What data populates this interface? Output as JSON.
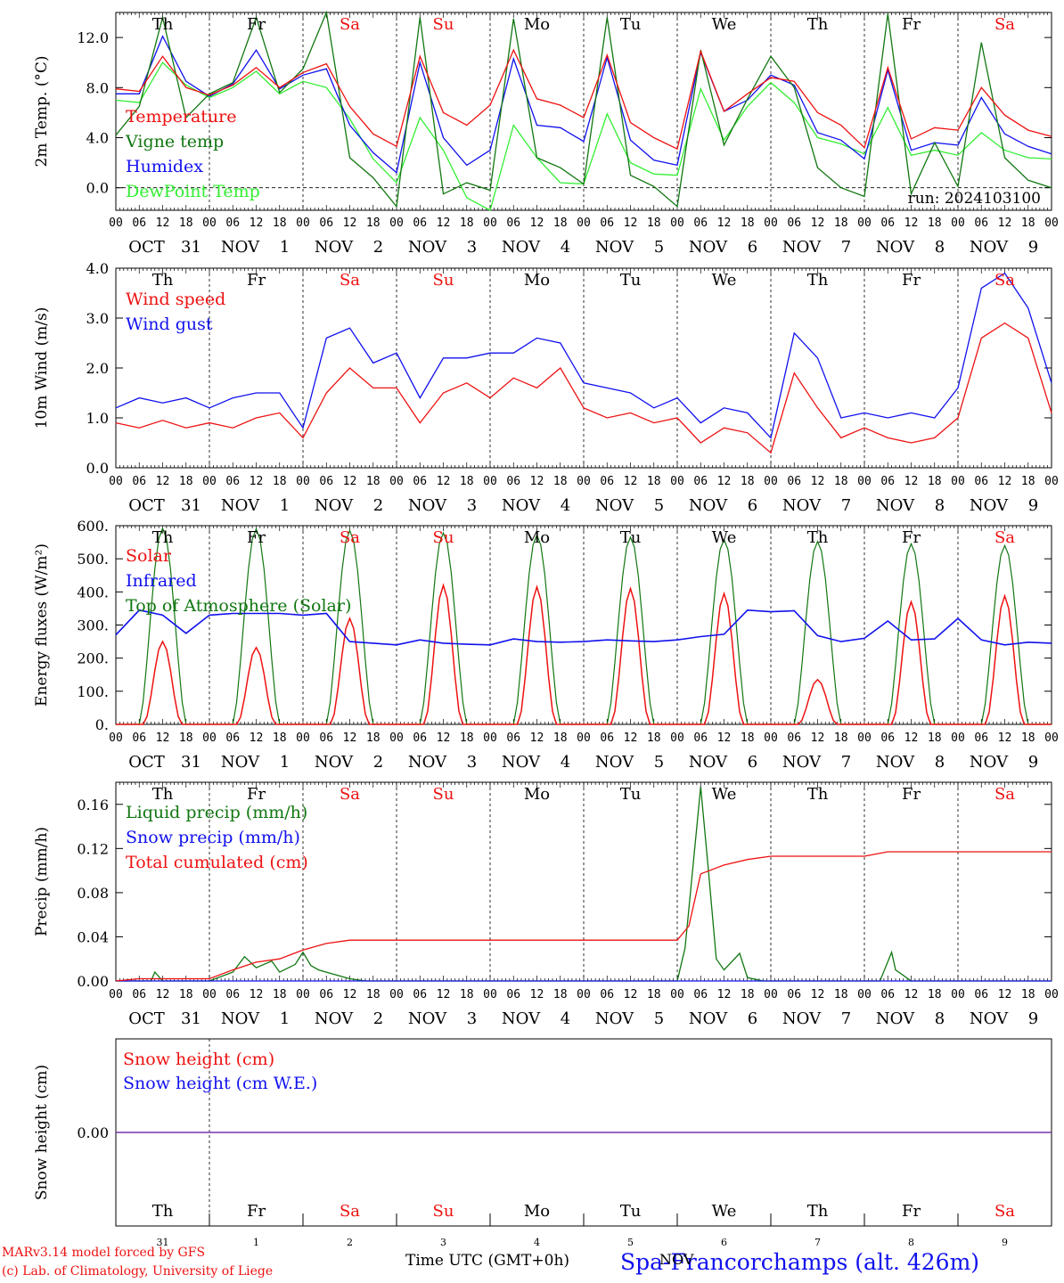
{
  "colors": {
    "red": "#ee1111",
    "green": "#117711",
    "blue": "#1111ee",
    "lightgreen": "#33ee33",
    "purple": "#7733aa",
    "black": "#000000"
  },
  "days": {
    "names": [
      "Th",
      "Fr",
      "Sa",
      "Su",
      "Mo",
      "Tu",
      "We",
      "Th",
      "Fr",
      "Sa"
    ],
    "weekend": [
      false,
      false,
      true,
      true,
      false,
      false,
      false,
      false,
      false,
      true
    ],
    "date_month": [
      "OCT",
      "NOV",
      "NOV",
      "NOV",
      "NOV",
      "NOV",
      "NOV",
      "NOV",
      "NOV",
      "NOV"
    ],
    "date_day": [
      "31",
      "1",
      "2",
      "3",
      "4",
      "5",
      "6",
      "7",
      "8",
      "9"
    ],
    "hour_ticks": [
      "00",
      "06",
      "12",
      "18"
    ],
    "last_tick": "00"
  },
  "chart_data": [
    {
      "type": "line",
      "ylabel": "2m Temp. (°C)",
      "ylim": [
        -1.8,
        14.0
      ],
      "yticks": [
        "0.0",
        "4.0",
        "8.0",
        "12.0"
      ],
      "ytick_values": [
        0,
        4,
        8,
        12
      ],
      "x_unit": "hours since 2024-10-31 00 UTC",
      "annotation": "run: 2024103100",
      "series": [
        {
          "name": "Temperature",
          "color": "red",
          "x": [
            0,
            6,
            12,
            18,
            24,
            30,
            36,
            42,
            48,
            54,
            60,
            66,
            72,
            78,
            84,
            90,
            96,
            102,
            108,
            114,
            120,
            126,
            132,
            138,
            144,
            150,
            156,
            162,
            168,
            174,
            180,
            186,
            192,
            198,
            204,
            210,
            216,
            222,
            228,
            234,
            240
          ],
          "y": [
            7.9,
            7.7,
            10.5,
            8.0,
            7.4,
            8.2,
            9.6,
            8.0,
            9.2,
            9.9,
            6.5,
            4.3,
            3.3,
            10.5,
            6.0,
            5.0,
            6.6,
            11.0,
            7.1,
            6.6,
            5.6,
            10.6,
            5.2,
            4.0,
            3.1,
            10.9,
            6.1,
            7.5,
            8.8,
            8.5,
            6.0,
            5.0,
            3.2,
            9.6,
            3.9,
            4.8,
            4.6,
            8.0,
            5.8,
            4.6,
            4.1
          ]
        },
        {
          "name": "Vigne temp",
          "color": "green",
          "x": [
            0,
            6,
            12,
            18,
            24,
            30,
            36,
            42,
            48,
            54,
            60,
            66,
            72,
            78,
            84,
            90,
            96,
            102,
            108,
            114,
            120,
            126,
            132,
            138,
            144,
            150,
            156,
            162,
            168,
            174,
            180,
            186,
            192,
            198,
            204,
            210,
            216,
            222,
            228,
            234,
            240
          ],
          "y": [
            4.2,
            6.5,
            13.6,
            5.6,
            7.5,
            8.4,
            13.6,
            7.6,
            9.5,
            14.0,
            2.4,
            0.8,
            -1.5,
            13.6,
            -0.5,
            0.4,
            -0.2,
            13.5,
            2.4,
            1.6,
            0.3,
            13.6,
            1.0,
            0.1,
            -1.5,
            11.0,
            3.4,
            7.1,
            10.5,
            8.0,
            1.6,
            0.0,
            -0.7,
            13.9,
            -0.5,
            3.6,
            0.1,
            11.6,
            2.4,
            0.6,
            0.0
          ]
        },
        {
          "name": "Humidex",
          "color": "blue",
          "x": [
            0,
            6,
            12,
            18,
            24,
            30,
            36,
            42,
            48,
            54,
            60,
            66,
            72,
            78,
            84,
            90,
            96,
            102,
            108,
            114,
            120,
            126,
            132,
            138,
            144,
            150,
            156,
            162,
            168,
            174,
            180,
            186,
            192,
            198,
            204,
            210,
            216,
            222,
            228,
            234,
            240
          ],
          "y": [
            7.5,
            7.5,
            12.1,
            8.5,
            7.3,
            8.3,
            11.0,
            7.9,
            9.0,
            9.5,
            5.0,
            2.8,
            1.2,
            10.0,
            4.0,
            1.8,
            3.0,
            10.3,
            5.0,
            4.8,
            3.7,
            10.4,
            3.8,
            2.2,
            1.8,
            10.8,
            6.1,
            7.0,
            9.0,
            8.2,
            4.4,
            3.8,
            2.3,
            9.4,
            3.0,
            3.6,
            3.4,
            7.2,
            4.3,
            3.3,
            2.7
          ]
        },
        {
          "name": "DewPoint Temp",
          "color": "lightgreen",
          "x": [
            0,
            6,
            12,
            18,
            24,
            30,
            36,
            42,
            48,
            54,
            60,
            66,
            72,
            78,
            84,
            90,
            96,
            102,
            108,
            114,
            120,
            126,
            132,
            138,
            144,
            150,
            156,
            162,
            168,
            174,
            180,
            186,
            192,
            198,
            204,
            210,
            216,
            222,
            228,
            234,
            240
          ],
          "y": [
            7.0,
            6.8,
            10.0,
            8.2,
            7.2,
            8.0,
            9.3,
            7.5,
            8.5,
            8.0,
            5.5,
            2.3,
            0.4,
            5.6,
            3.0,
            -0.8,
            -1.8,
            5.0,
            2.4,
            0.4,
            0.3,
            5.9,
            2.0,
            1.1,
            1.0,
            7.9,
            3.8,
            6.5,
            8.4,
            6.8,
            4.0,
            3.5,
            2.7,
            6.4,
            2.6,
            3.0,
            2.6,
            4.4,
            3.0,
            2.4,
            2.3
          ]
        }
      ]
    },
    {
      "type": "line",
      "ylabel": "10m Wind (m/s)",
      "ylim": [
        0.0,
        4.0
      ],
      "yticks": [
        "0.0",
        "1.0",
        "2.0",
        "3.0",
        "4.0"
      ],
      "ytick_values": [
        0,
        1,
        2,
        3,
        4
      ],
      "x_unit": "hours since 2024-10-31 00 UTC",
      "series": [
        {
          "name": "Wind speed",
          "color": "red",
          "x": [
            0,
            6,
            12,
            18,
            24,
            30,
            36,
            42,
            48,
            54,
            60,
            66,
            72,
            78,
            84,
            90,
            96,
            102,
            108,
            114,
            120,
            126,
            132,
            138,
            144,
            150,
            156,
            162,
            168,
            174,
            180,
            186,
            192,
            198,
            204,
            210,
            216,
            222,
            228,
            234,
            240
          ],
          "y": [
            0.9,
            0.8,
            0.95,
            0.8,
            0.9,
            0.8,
            1.0,
            1.1,
            0.6,
            1.5,
            2.0,
            1.6,
            1.6,
            0.9,
            1.5,
            1.7,
            1.4,
            1.8,
            1.6,
            2.0,
            1.2,
            1.0,
            1.1,
            0.9,
            1.0,
            0.5,
            0.8,
            0.7,
            0.3,
            1.9,
            1.2,
            0.6,
            0.8,
            0.6,
            0.5,
            0.6,
            1.0,
            2.6,
            2.9,
            2.6,
            1.1
          ]
        },
        {
          "name": "Wind gust",
          "color": "blue",
          "x": [
            0,
            6,
            12,
            18,
            24,
            30,
            36,
            42,
            48,
            54,
            60,
            66,
            72,
            78,
            84,
            90,
            96,
            102,
            108,
            114,
            120,
            126,
            132,
            138,
            144,
            150,
            156,
            162,
            168,
            174,
            180,
            186,
            192,
            198,
            204,
            210,
            216,
            222,
            228,
            234,
            240
          ],
          "y": [
            1.2,
            1.4,
            1.3,
            1.4,
            1.2,
            1.4,
            1.5,
            1.5,
            0.8,
            2.6,
            2.8,
            2.1,
            2.3,
            1.4,
            2.2,
            2.2,
            2.3,
            2.3,
            2.6,
            2.5,
            1.7,
            1.6,
            1.5,
            1.2,
            1.4,
            0.9,
            1.2,
            1.1,
            0.6,
            2.7,
            2.2,
            1.0,
            1.1,
            1.0,
            1.1,
            1.0,
            1.6,
            3.6,
            3.9,
            3.2,
            1.7
          ]
        }
      ]
    },
    {
      "type": "line",
      "ylabel": "Energy fluxes (W/m²)",
      "ylim": [
        0,
        600
      ],
      "yticks": [
        "0.",
        "100.",
        "200.",
        "300.",
        "400.",
        "500.",
        "600."
      ],
      "ytick_values": [
        0,
        100,
        200,
        300,
        400,
        500,
        600
      ],
      "x_unit": "hours since 2024-10-31 00 UTC",
      "solar_peaks_day_index": [
        0,
        1,
        2,
        3,
        4,
        5,
        6,
        7,
        8,
        9
      ],
      "solar_peaks": [
        250,
        232,
        320,
        420,
        415,
        410,
        395,
        135,
        370,
        388
      ],
      "toa_peaks": [
        592,
        590,
        585,
        578,
        572,
        565,
        558,
        552,
        545,
        540
      ],
      "series": [
        {
          "name": "Solar",
          "color": "red"
        },
        {
          "name": "Infrared",
          "color": "blue",
          "x": [
            0,
            6,
            12,
            18,
            24,
            30,
            36,
            42,
            48,
            54,
            60,
            66,
            72,
            78,
            84,
            90,
            96,
            102,
            108,
            114,
            120,
            126,
            132,
            138,
            144,
            150,
            156,
            162,
            168,
            174,
            180,
            186,
            192,
            198,
            204,
            210,
            216,
            222,
            228,
            234,
            240
          ],
          "y": [
            270,
            345,
            330,
            275,
            330,
            335,
            335,
            335,
            330,
            335,
            250,
            245,
            240,
            255,
            245,
            242,
            240,
            258,
            250,
            248,
            250,
            255,
            252,
            250,
            255,
            265,
            272,
            345,
            340,
            343,
            268,
            250,
            260,
            312,
            255,
            258,
            320,
            255,
            240,
            248,
            245
          ]
        },
        {
          "name": "Top of Atmosphere (Solar)",
          "color": "green"
        }
      ]
    },
    {
      "type": "line",
      "ylabel": "Precip (mm/h)",
      "ylim": [
        0.0,
        0.18
      ],
      "yticks": [
        "0.00",
        "0.04",
        "0.08",
        "0.12",
        "0.16"
      ],
      "ytick_values": [
        0,
        0.04,
        0.08,
        0.12,
        0.16
      ],
      "x_unit": "hours since 2024-10-31 00 UTC",
      "series": [
        {
          "name": "Liquid precip (mm/h)",
          "color": "green",
          "x": [
            0,
            9,
            10,
            12,
            18,
            24,
            30,
            33,
            36,
            40,
            42,
            46,
            48,
            50,
            52,
            56,
            60,
            64,
            144,
            146,
            150,
            152,
            154,
            156,
            160,
            162,
            166,
            170,
            174,
            180,
            196,
            199,
            200,
            204,
            240
          ],
          "y": [
            0,
            0,
            0.008,
            0,
            0,
            0,
            0.008,
            0.022,
            0.012,
            0.018,
            0.008,
            0.015,
            0.026,
            0.014,
            0.01,
            0.006,
            0.002,
            0,
            0,
            0.03,
            0.176,
            0.1,
            0.02,
            0.01,
            0.025,
            0.003,
            0,
            0,
            0,
            0,
            0,
            0.026,
            0.01,
            0,
            0
          ]
        },
        {
          "name": "Snow precip (mm/h)",
          "color": "blue",
          "x": [
            0,
            240
          ],
          "y": [
            0,
            0
          ]
        },
        {
          "name": "Total cumulated (cm)",
          "color": "red",
          "x": [
            0,
            6,
            12,
            18,
            24,
            30,
            36,
            42,
            48,
            54,
            60,
            66,
            72,
            96,
            120,
            144,
            147,
            150,
            156,
            162,
            168,
            174,
            180,
            192,
            198,
            204,
            216,
            228,
            240
          ],
          "y": [
            0,
            0.002,
            0.002,
            0.002,
            0.002,
            0.01,
            0.017,
            0.02,
            0.028,
            0.034,
            0.037,
            0.037,
            0.037,
            0.037,
            0.037,
            0.037,
            0.05,
            0.097,
            0.105,
            0.11,
            0.113,
            0.113,
            0.113,
            0.113,
            0.117,
            0.117,
            0.117,
            0.117,
            0.117
          ]
        }
      ]
    },
    {
      "type": "line",
      "ylabel": "Snow height (cm)",
      "ylim": [
        -1.0,
        1.0
      ],
      "yticks": [
        "0.00"
      ],
      "ytick_values": [
        0
      ],
      "x_unit": "hours since 2024-10-31 00 UTC",
      "series": [
        {
          "name": "Snow height (cm)",
          "color": "red",
          "x": [
            0,
            240
          ],
          "y": [
            0,
            0
          ]
        },
        {
          "name": "Snow height (cm W.E.)",
          "color": "blue",
          "x": [
            0,
            240
          ],
          "y": [
            0,
            0
          ]
        }
      ]
    }
  ],
  "footer": {
    "month_label": "NOV",
    "time_label": "Time UTC (GMT+0h)",
    "station": "Spa-Francorchamps (alt. 426m)",
    "credit1": "MARv3.14 model forced by GFS",
    "credit2": "(c) Lab. of Climatology, University of Liege"
  }
}
